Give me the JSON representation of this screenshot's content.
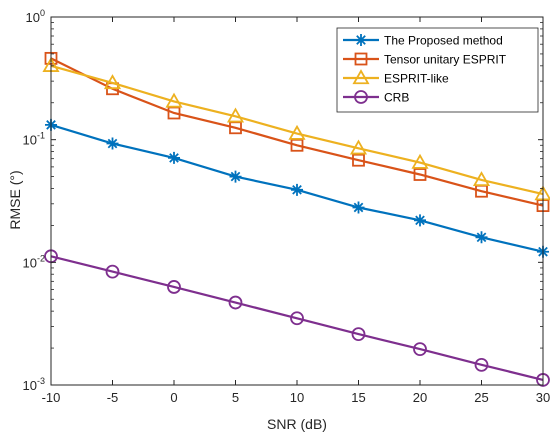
{
  "chart_data": {
    "type": "line",
    "title": "",
    "xlabel": "SNR (dB)",
    "ylabel": "RMSE (°)",
    "y_scale": "log",
    "xlim": [
      -10,
      30
    ],
    "ylim": [
      0.001,
      1
    ],
    "x_ticks": [
      -10,
      -5,
      0,
      5,
      10,
      15,
      20,
      25,
      30
    ],
    "x_tick_labels": [
      "-10",
      "-5",
      "0",
      "5",
      "10",
      "15",
      "20",
      "25",
      "30"
    ],
    "y_ticks": [
      {
        "value": 0.001,
        "base": "10",
        "exp": "-3"
      },
      {
        "value": 0.01,
        "base": "10",
        "exp": "-2"
      },
      {
        "value": 0.1,
        "base": "10",
        "exp": "-1"
      },
      {
        "value": 1,
        "base": "10",
        "exp": "0"
      }
    ],
    "grid": false,
    "legend_position": "top-right",
    "x": [
      -10,
      -5,
      0,
      5,
      10,
      15,
      20,
      25,
      30
    ],
    "series": [
      {
        "name": "The Proposed method",
        "marker": "asterisk",
        "color": "#0072BD",
        "values": [
          0.132,
          0.093,
          0.071,
          0.05,
          0.039,
          0.028,
          0.022,
          0.016,
          0.0122
        ]
      },
      {
        "name": "Tensor unitary ESPRIT",
        "marker": "square",
        "color": "#D95319",
        "values": [
          0.46,
          0.26,
          0.165,
          0.125,
          0.09,
          0.068,
          0.052,
          0.038,
          0.029
        ]
      },
      {
        "name": "ESPRIT-like",
        "marker": "triangle",
        "color": "#EDB120",
        "values": [
          0.4,
          0.29,
          0.205,
          0.155,
          0.112,
          0.085,
          0.065,
          0.047,
          0.036
        ]
      },
      {
        "name": "CRB",
        "marker": "circle",
        "color": "#7E2F8E",
        "values": [
          0.0112,
          0.0084,
          0.0063,
          0.0047,
          0.0035,
          0.0026,
          0.00196,
          0.00146,
          0.0011
        ]
      }
    ]
  }
}
